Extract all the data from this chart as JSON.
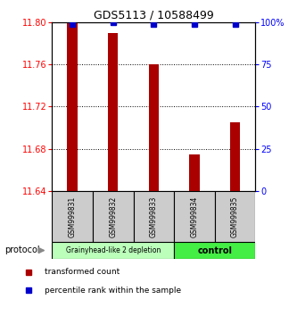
{
  "title": "GDS5113 / 10588499",
  "samples": [
    "GSM999831",
    "GSM999832",
    "GSM999833",
    "GSM999834",
    "GSM999835"
  ],
  "red_values": [
    11.8,
    11.79,
    11.76,
    11.675,
    11.705
  ],
  "blue_values": [
    99,
    100,
    99,
    99,
    99
  ],
  "ylim_left": [
    11.64,
    11.8
  ],
  "ylim_right": [
    0,
    100
  ],
  "yticks_left": [
    11.64,
    11.68,
    11.72,
    11.76,
    11.8
  ],
  "yticks_right": [
    0,
    25,
    50,
    75,
    100
  ],
  "ytick_labels_right": [
    "0",
    "25",
    "50",
    "75",
    "100%"
  ],
  "bar_color": "#aa0000",
  "dot_color": "#0000cc",
  "group1_label": "Grainyhead-like 2 depletion",
  "group2_label": "control",
  "group1_color": "#bbffbb",
  "group2_color": "#44ee44",
  "protocol_label": "protocol",
  "legend1": "transformed count",
  "legend2": "percentile rank within the sample",
  "baseline": 11.64,
  "grid_lines": [
    11.68,
    11.72,
    11.76
  ],
  "title_fontsize": 9
}
